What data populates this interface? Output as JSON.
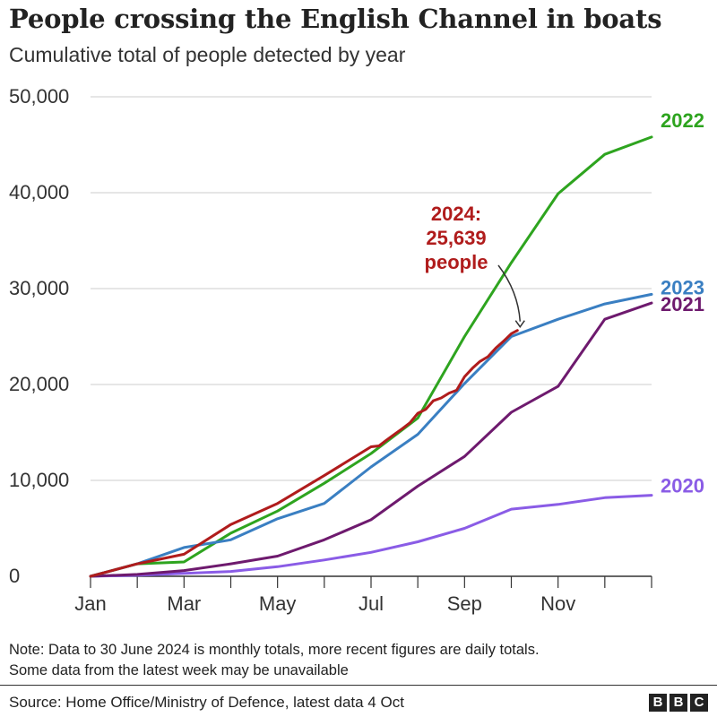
{
  "title": "People crossing the English Channel in boats",
  "subtitle": "Cumulative total of people detected by year",
  "note": [
    "Note: Data to 30 June 2024 is monthly totals, more recent figures are daily totals.",
    "Some data from the latest week may be unavailable"
  ],
  "source": "Source: Home Office/Ministry of Defence, latest data 4 Oct",
  "logo": [
    "B",
    "B",
    "C"
  ],
  "chart_data": {
    "type": "line",
    "title": "People crossing the English Channel in boats",
    "subtitle": "Cumulative total of people detected by year",
    "ylim": [
      0,
      50000
    ],
    "yticks": [
      0,
      10000,
      20000,
      30000,
      40000,
      50000
    ],
    "ytick_labels": [
      "0",
      "10,000",
      "20,000",
      "30,000",
      "40,000",
      "50,000"
    ],
    "xlim": [
      0,
      12
    ],
    "xticks": [
      0,
      1,
      2,
      3,
      4,
      5,
      6,
      7,
      8,
      9,
      10,
      11,
      12
    ],
    "xtick_labels": [
      "Jan",
      "Mar",
      "May",
      "Jul",
      "Sep",
      "Nov"
    ],
    "xtick_label_positions": [
      0,
      2,
      4,
      6,
      8,
      10
    ],
    "grid": "horizontal",
    "series": [
      {
        "name": "2020",
        "color": "#8a5ce6",
        "x": [
          0,
          1,
          2,
          3,
          4,
          5,
          6,
          7,
          8,
          9,
          10,
          11,
          12
        ],
        "values": [
          0,
          100,
          300,
          500,
          1000,
          1700,
          2500,
          3600,
          5000,
          7000,
          7500,
          8200,
          8450
        ]
      },
      {
        "name": "2021",
        "color": "#6e1a6e",
        "x": [
          0,
          1,
          2,
          3,
          4,
          5,
          6,
          7,
          8,
          9,
          10,
          11,
          12
        ],
        "values": [
          0,
          200,
          600,
          1300,
          2100,
          3800,
          5900,
          9400,
          12500,
          17100,
          19800,
          26800,
          28500
        ]
      },
      {
        "name": "2022",
        "color": "#2ea41f",
        "x": [
          0,
          1,
          2,
          3,
          4,
          5,
          6,
          7,
          8,
          9,
          10,
          11,
          12
        ],
        "values": [
          0,
          1300,
          1500,
          4500,
          6800,
          9700,
          12800,
          16500,
          25000,
          32700,
          39900,
          44000,
          45800
        ]
      },
      {
        "name": "2023",
        "color": "#3a7fc2",
        "x": [
          0,
          1,
          2,
          3,
          4,
          5,
          6,
          7,
          8,
          9,
          10,
          11,
          12
        ],
        "values": [
          0,
          1300,
          3000,
          3800,
          6000,
          7600,
          11400,
          14800,
          20100,
          25000,
          26800,
          28400,
          29400
        ]
      },
      {
        "name": "2024",
        "color": "#b01c1c",
        "x": [
          0,
          1,
          2,
          3,
          4,
          5,
          6,
          6.17,
          6.33,
          6.5,
          6.67,
          6.83,
          7,
          7.17,
          7.33,
          7.5,
          7.67,
          7.83,
          8,
          8.17,
          8.33,
          8.5,
          8.67,
          8.83,
          9,
          9.13
        ],
        "values": [
          0,
          1300,
          2300,
          5400,
          7600,
          10500,
          13500,
          13600,
          14200,
          14800,
          15400,
          16000,
          17000,
          17400,
          18300,
          18600,
          19100,
          19400,
          20800,
          21700,
          22400,
          22900,
          23800,
          24500,
          25300,
          25639
        ]
      }
    ],
    "annotation": {
      "lines": [
        "2024:",
        "25,639",
        "people"
      ],
      "color": "#b01c1c"
    }
  }
}
